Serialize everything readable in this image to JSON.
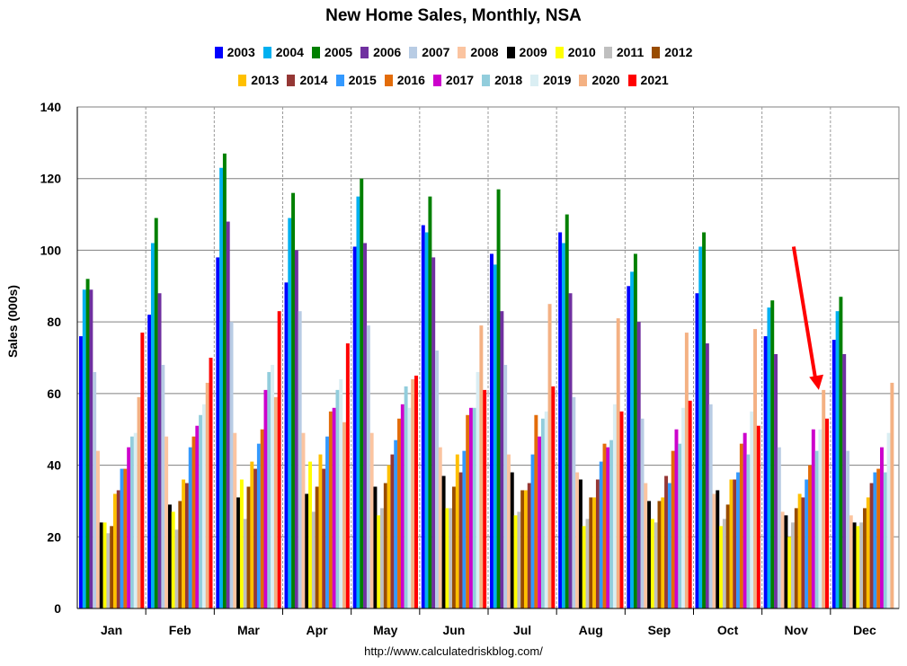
{
  "chart_data": {
    "type": "bar",
    "title": "New Home Sales, Monthly, NSA",
    "ylabel": "Sales (000s)",
    "xlabel": "",
    "ylim": [
      0,
      140
    ],
    "yticks": [
      0,
      20,
      40,
      60,
      80,
      100,
      120,
      140
    ],
    "source": "http://www.calculatedriskblog.com/",
    "categories": [
      "Jan",
      "Feb",
      "Mar",
      "Apr",
      "May",
      "Jun",
      "Jul",
      "Aug",
      "Sep",
      "Oct",
      "Nov",
      "Dec"
    ],
    "series": [
      {
        "name": "2003",
        "color": "#0000ff",
        "values": [
          76,
          82,
          98,
          91,
          101,
          107,
          99,
          105,
          90,
          88,
          76,
          75
        ]
      },
      {
        "name": "2004",
        "color": "#00b0f0",
        "values": [
          89,
          102,
          123,
          109,
          115,
          105,
          96,
          102,
          94,
          101,
          84,
          83
        ]
      },
      {
        "name": "2005",
        "color": "#008000",
        "values": [
          92,
          109,
          127,
          116,
          120,
          115,
          117,
          110,
          99,
          105,
          86,
          87
        ]
      },
      {
        "name": "2006",
        "color": "#7030a0",
        "values": [
          89,
          88,
          108,
          100,
          102,
          98,
          83,
          88,
          80,
          74,
          71,
          71
        ]
      },
      {
        "name": "2007",
        "color": "#b8cce4",
        "values": [
          66,
          68,
          80,
          83,
          79,
          72,
          68,
          59,
          53,
          57,
          45,
          44
        ]
      },
      {
        "name": "2008",
        "color": "#fbc4a0",
        "values": [
          44,
          48,
          49,
          49,
          49,
          45,
          43,
          38,
          35,
          32,
          27,
          26
        ]
      },
      {
        "name": "2009",
        "color": "#000000",
        "values": [
          24,
          29,
          31,
          32,
          34,
          37,
          38,
          36,
          30,
          33,
          26,
          24
        ]
      },
      {
        "name": "2010",
        "color": "#ffff00",
        "values": [
          24,
          27,
          36,
          41,
          26,
          28,
          26,
          23,
          25,
          23,
          20,
          23
        ]
      },
      {
        "name": "2011",
        "color": "#bfbfbf",
        "values": [
          21,
          22,
          25,
          27,
          28,
          28,
          27,
          25,
          24,
          25,
          24,
          24
        ]
      },
      {
        "name": "2012",
        "color": "#994c00",
        "values": [
          23,
          30,
          34,
          34,
          35,
          34,
          33,
          31,
          30,
          29,
          28,
          28
        ]
      },
      {
        "name": "2013",
        "color": "#ffc000",
        "values": [
          32,
          36,
          41,
          43,
          40,
          43,
          33,
          31,
          31,
          36,
          32,
          31
        ]
      },
      {
        "name": "2014",
        "color": "#953735",
        "values": [
          33,
          35,
          39,
          39,
          43,
          38,
          35,
          36,
          37,
          36,
          31,
          35
        ]
      },
      {
        "name": "2015",
        "color": "#3399ff",
        "values": [
          39,
          45,
          46,
          48,
          47,
          44,
          43,
          41,
          35,
          38,
          36,
          38
        ]
      },
      {
        "name": "2016",
        "color": "#e36c09",
        "values": [
          39,
          48,
          50,
          55,
          53,
          54,
          54,
          46,
          44,
          46,
          40,
          39
        ]
      },
      {
        "name": "2017",
        "color": "#cc00cc",
        "values": [
          45,
          51,
          61,
          56,
          57,
          56,
          48,
          45,
          50,
          49,
          50,
          45
        ]
      },
      {
        "name": "2018",
        "color": "#92cddc",
        "values": [
          48,
          54,
          66,
          61,
          62,
          56,
          53,
          47,
          46,
          43,
          44,
          38
        ]
      },
      {
        "name": "2019",
        "color": "#daeef3",
        "values": [
          49,
          57,
          68,
          64,
          56,
          66,
          55,
          57,
          56,
          55,
          50,
          49
        ]
      },
      {
        "name": "2020",
        "color": "#f4b183",
        "values": [
          59,
          63,
          59,
          52,
          64,
          79,
          85,
          81,
          77,
          78,
          61,
          63
        ]
      },
      {
        "name": "2021",
        "color": "#ff0000",
        "values": [
          77,
          70,
          83,
          74,
          65,
          61,
          62,
          55,
          58,
          51,
          53,
          null
        ]
      }
    ],
    "annotations": [
      {
        "type": "arrow",
        "color": "#ff0000",
        "points_to": "Nov 2021"
      }
    ]
  }
}
